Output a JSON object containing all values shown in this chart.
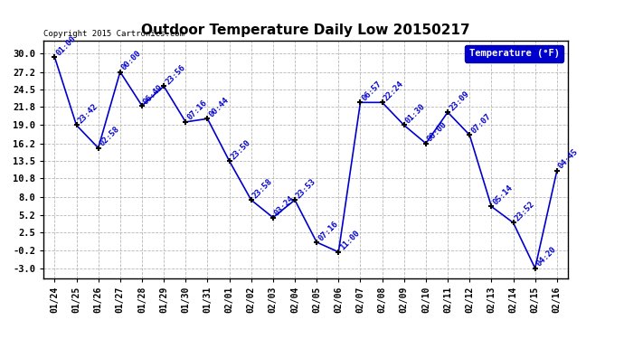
{
  "title": "Outdoor Temperature Daily Low 20150217",
  "copyright": "Copyright 2015 Cartronics.com",
  "legend_label": "Temperature (°F)",
  "x_labels": [
    "01/24",
    "01/25",
    "01/26",
    "01/27",
    "01/28",
    "01/29",
    "01/30",
    "01/31",
    "02/01",
    "02/02",
    "02/03",
    "02/04",
    "02/05",
    "02/06",
    "02/07",
    "02/08",
    "02/09",
    "02/10",
    "02/11",
    "02/12",
    "02/13",
    "02/14",
    "02/15",
    "02/16"
  ],
  "y_values": [
    29.5,
    19.0,
    15.5,
    27.2,
    22.0,
    25.0,
    19.5,
    20.0,
    13.5,
    7.5,
    4.8,
    7.5,
    1.0,
    -0.5,
    22.5,
    22.5,
    19.0,
    16.2,
    21.0,
    17.5,
    6.5,
    4.0,
    -3.0,
    12.0
  ],
  "annotations": [
    "01:00",
    "23:42",
    "02:58",
    "00:00",
    "06:49",
    "23:56",
    "07:16",
    "00:44",
    "23:50",
    "23:58",
    "03:24",
    "23:53",
    "07:16",
    "11:00",
    "06:57",
    "22:24",
    "01:30",
    "00:00",
    "23:09",
    "07:07",
    "05:14",
    "23:52",
    "04:20",
    "04:45"
  ],
  "yticks": [
    30.0,
    27.2,
    24.5,
    21.8,
    19.0,
    16.2,
    13.5,
    10.8,
    8.0,
    5.2,
    2.5,
    -0.2,
    -3.0
  ],
  "ylim": [
    -4.5,
    32.0
  ],
  "line_color": "#0000cc",
  "marker_color": "#000000",
  "bg_color": "#ffffff",
  "grid_color": "#b0b0b0",
  "legend_bg": "#0000cc",
  "legend_text_color": "#ffffff",
  "title_color": "#000000",
  "annotation_color": "#0000cc",
  "copyright_color": "#000000",
  "figwidth": 6.9,
  "figheight": 3.75,
  "dpi": 100
}
